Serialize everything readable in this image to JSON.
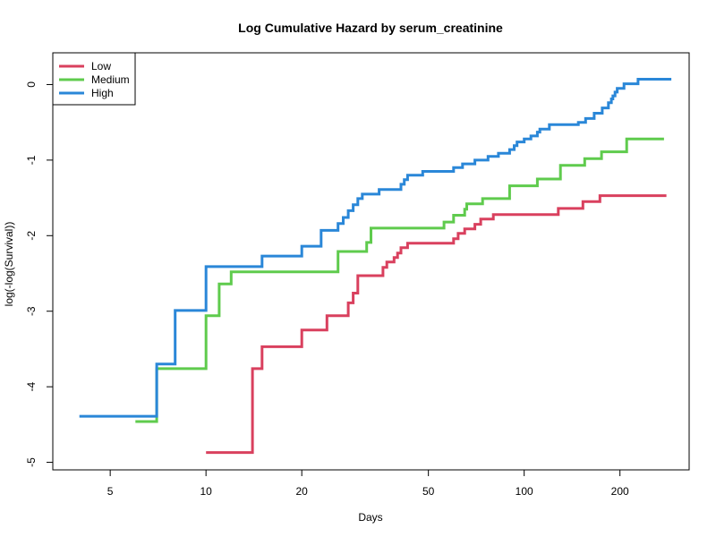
{
  "chart_data": {
    "type": "line",
    "step": true,
    "title": "Log Cumulative Hazard by serum_creatinine",
    "xlabel": "Days",
    "ylabel": "log(-log(Survival))",
    "x_scale": "log",
    "xlim": [
      3.3,
      330
    ],
    "ylim": [
      -5.1,
      0.42
    ],
    "x_ticks": [
      5,
      10,
      20,
      50,
      100,
      200
    ],
    "y_ticks": [
      -5,
      -4,
      -3,
      -2,
      -1,
      0
    ],
    "x_tick_labels": [
      "5",
      "10",
      "20",
      "50",
      "100",
      "200"
    ],
    "y_tick_labels": [
      "-5",
      "-4",
      "-3",
      "-2",
      "-1",
      "0"
    ],
    "grid": false,
    "legend_position": "top-left",
    "series": [
      {
        "name": "Low",
        "color": "#d9405e",
        "x": [
          10,
          14,
          15,
          20,
          24,
          28,
          29,
          30,
          36,
          37,
          39,
          40,
          41,
          43,
          60,
          62,
          65,
          70,
          73,
          80,
          128,
          153,
          173,
          280
        ],
        "y": [
          -4.87,
          -3.76,
          -3.47,
          -3.25,
          -3.06,
          -2.89,
          -2.76,
          -2.53,
          -2.42,
          -2.35,
          -2.29,
          -2.23,
          -2.16,
          -2.1,
          -2.04,
          -1.97,
          -1.91,
          -1.85,
          -1.78,
          -1.72,
          -1.64,
          -1.55,
          -1.47,
          -1.47
        ]
      },
      {
        "name": "Medium",
        "color": "#5fcb4d",
        "x": [
          6,
          7,
          10,
          11,
          12,
          26,
          32,
          33,
          56,
          60,
          65,
          66,
          74,
          90,
          110,
          130,
          155,
          175,
          210,
          275
        ],
        "y": [
          -4.46,
          -3.76,
          -3.06,
          -2.64,
          -2.48,
          -2.21,
          -2.09,
          -1.9,
          -1.82,
          -1.73,
          -1.65,
          -1.58,
          -1.51,
          -1.34,
          -1.25,
          -1.07,
          -0.98,
          -0.89,
          -0.72,
          -0.72
        ]
      },
      {
        "name": "High",
        "color": "#2a87d8",
        "x": [
          4,
          7,
          8,
          10,
          15,
          20,
          23,
          26,
          27,
          28,
          29,
          30,
          31,
          35,
          41,
          42,
          43,
          48,
          60,
          64,
          70,
          77,
          83,
          90,
          93,
          95,
          100,
          105,
          110,
          112,
          120,
          148,
          156,
          166,
          176,
          184,
          188,
          190,
          193,
          196,
          206,
          228,
          290
        ],
        "y": [
          -4.39,
          -3.7,
          -2.99,
          -2.41,
          -2.27,
          -2.14,
          -1.93,
          -1.84,
          -1.76,
          -1.67,
          -1.59,
          -1.51,
          -1.45,
          -1.39,
          -1.32,
          -1.26,
          -1.2,
          -1.15,
          -1.1,
          -1.05,
          -1.0,
          -0.95,
          -0.91,
          -0.86,
          -0.81,
          -0.76,
          -0.72,
          -0.68,
          -0.63,
          -0.59,
          -0.53,
          -0.5,
          -0.45,
          -0.38,
          -0.31,
          -0.24,
          -0.19,
          -0.15,
          -0.1,
          -0.05,
          0.01,
          0.07,
          0.07
        ]
      }
    ]
  }
}
